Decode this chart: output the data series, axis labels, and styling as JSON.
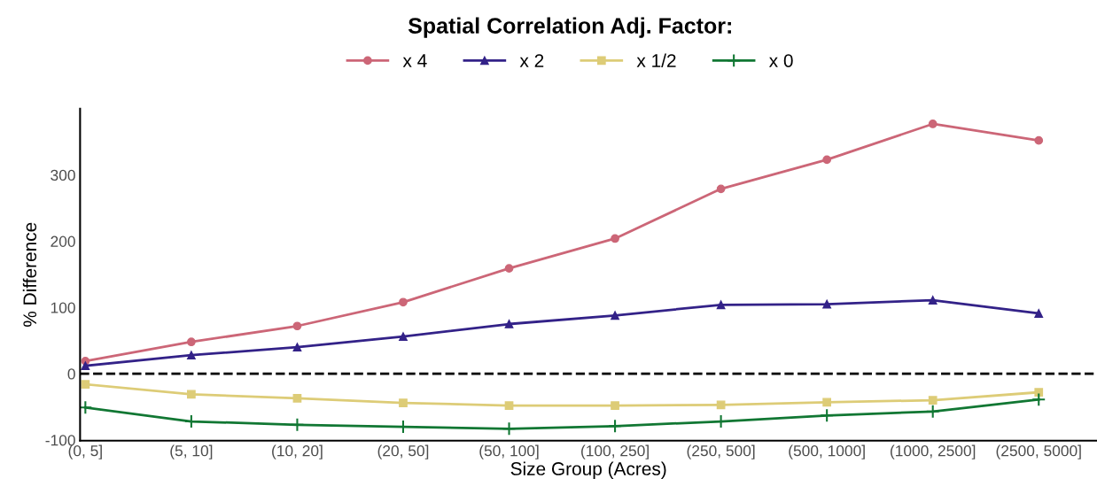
{
  "chart_data": {
    "type": "line",
    "title": "Spatial Correlation Adj. Factor:",
    "xlabel": "Size Group (Acres)",
    "ylabel": "% Difference",
    "categories": [
      "(0, 5]",
      "(5, 10]",
      "(10, 20]",
      "(20, 50]",
      "(50, 100]",
      "(100, 250]",
      "(250, 500]",
      "(500, 1000]",
      "(1000, 2500]",
      "(2500, 5000]"
    ],
    "series": [
      {
        "name": "x 4",
        "color": "#cc6677",
        "marker": "circle",
        "values": [
          19,
          48,
          72,
          108,
          159,
          204,
          279,
          323,
          377,
          352
        ]
      },
      {
        "name": "x 2",
        "color": "#332288",
        "marker": "triangle",
        "values": [
          12,
          28,
          40,
          56,
          75,
          88,
          104,
          105,
          111,
          91
        ]
      },
      {
        "name": "x 1/2",
        "color": "#ddcc77",
        "marker": "square",
        "values": [
          -16,
          -31,
          -37,
          -44,
          -48,
          -48,
          -47,
          -43,
          -40,
          -28
        ]
      },
      {
        "name": "x 0",
        "color": "#117733",
        "marker": "cross",
        "values": [
          -51,
          -72,
          -77,
          -80,
          -83,
          -79,
          -72,
          -63,
          -57,
          -39
        ]
      }
    ],
    "ylim": [
      -101,
      400
    ],
    "yticks": [
      -100,
      0,
      100,
      200,
      300
    ],
    "grid": false,
    "legend": "top",
    "ref_lines": [
      {
        "axis": "y",
        "value": 0,
        "color": "#000000",
        "line_style": "dashed"
      }
    ]
  }
}
